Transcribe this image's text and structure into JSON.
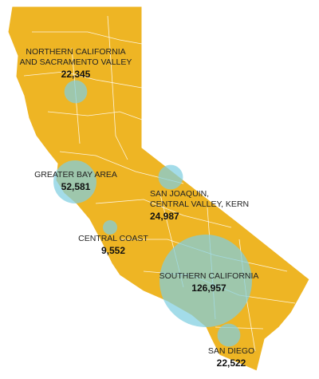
{
  "regions": [
    {
      "lines": [
        "NORTHERN CALIFORNIA",
        "AND SACRAMENTO VALLEY"
      ],
      "value": 22345,
      "label": "22,345"
    },
    {
      "lines": [
        "GREATER BAY AREA"
      ],
      "value": 52581,
      "label": "52,581"
    },
    {
      "lines": [
        "SAN JOAQUIN,",
        "CENTRAL VALLEY, KERN"
      ],
      "value": 24987,
      "label": "24,987"
    },
    {
      "lines": [
        "CENTRAL COAST"
      ],
      "value": 9552,
      "label": "9,552"
    },
    {
      "lines": [
        "SOUTHERN CALIFORNIA"
      ],
      "value": 126957,
      "label": "126,957"
    },
    {
      "lines": [
        "SAN DIEGO"
      ],
      "value": 22522,
      "label": "22,522"
    }
  ]
}
